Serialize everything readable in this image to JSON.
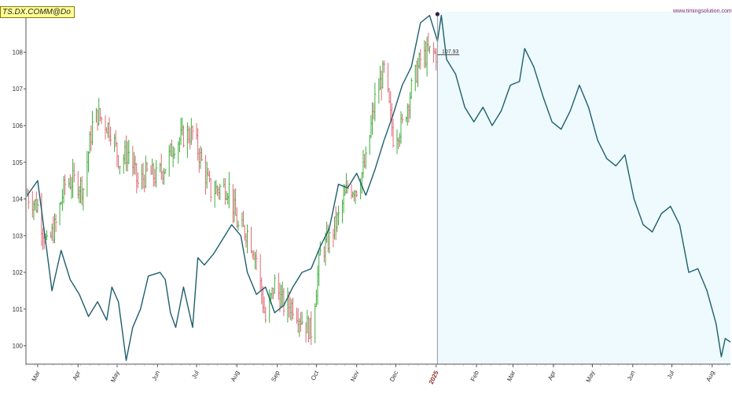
{
  "header": {
    "ticker": "TS.DX.COMM@Do",
    "watermark": "www.timingsolution.com",
    "last_price_label": "107.93"
  },
  "colors": {
    "forecast_line": "#1e5e6e",
    "bar_up": "#3fae3f",
    "bar_down": "#e06a75",
    "bar_neutral": "#888888",
    "forecast_zone": "#eefafd",
    "axis": "#555555",
    "year_label": "#8b2a2a",
    "marker": "#3a1b4a"
  },
  "chart_data": {
    "type": "line",
    "title": "",
    "xlabel": "",
    "ylabel": "",
    "ylim": [
      99.5,
      109.1
    ],
    "y_ticks": [
      "100",
      "101",
      "102",
      "103",
      "104",
      "105",
      "106",
      "107",
      "108",
      "109"
    ],
    "x_ticks": [
      {
        "label": "Mar",
        "date": "2024-03-01"
      },
      {
        "label": "Apr",
        "date": "2024-04-01"
      },
      {
        "label": "May",
        "date": "2024-05-01"
      },
      {
        "label": "Jun",
        "date": "2024-06-01"
      },
      {
        "label": "Jul",
        "date": "2024-07-01"
      },
      {
        "label": "Aug",
        "date": "2024-08-01"
      },
      {
        "label": "Sep",
        "date": "2024-09-01"
      },
      {
        "label": "Oct",
        "date": "2024-10-01"
      },
      {
        "label": "Nov",
        "date": "2024-11-01"
      },
      {
        "label": "Dec",
        "date": "2024-12-01"
      },
      {
        "label": "2025",
        "date": "2025-01-01",
        "is_year": true
      },
      {
        "label": "Feb",
        "date": "2025-02-01"
      },
      {
        "label": "Mar",
        "date": "2025-03-01"
      },
      {
        "label": "Apr",
        "date": "2025-04-01"
      },
      {
        "label": "May",
        "date": "2025-05-01"
      },
      {
        "label": "Jun",
        "date": "2025-06-01"
      },
      {
        "label": "Jul",
        "date": "2025-07-01"
      },
      {
        "label": "Aug",
        "date": "2025-08-01"
      }
    ],
    "x_range": [
      "2024-02-21",
      "2025-08-15"
    ],
    "forecast_start": "2025-01-02",
    "last_bar": {
      "date": "2025-01-02",
      "price": 107.93
    },
    "series": [
      {
        "kind": "price_bars",
        "points": [
          [
            "2024-02-22",
            104.1
          ],
          [
            "2024-03-01",
            103.8
          ],
          [
            "2024-03-08",
            102.7
          ],
          [
            "2024-03-15",
            103.3
          ],
          [
            "2024-03-22",
            104.4
          ],
          [
            "2024-03-29",
            104.5
          ],
          [
            "2024-04-05",
            104.3
          ],
          [
            "2024-04-12",
            106.0
          ],
          [
            "2024-04-16",
            106.3
          ],
          [
            "2024-04-26",
            105.9
          ],
          [
            "2024-05-03",
            105.0
          ],
          [
            "2024-05-10",
            105.3
          ],
          [
            "2024-05-17",
            104.4
          ],
          [
            "2024-05-24",
            104.7
          ],
          [
            "2024-05-31",
            104.6
          ],
          [
            "2024-06-07",
            104.9
          ],
          [
            "2024-06-14",
            105.5
          ],
          [
            "2024-06-21",
            105.7
          ],
          [
            "2024-06-28",
            105.8
          ],
          [
            "2024-07-05",
            105.0
          ],
          [
            "2024-07-12",
            104.2
          ],
          [
            "2024-07-19",
            104.3
          ],
          [
            "2024-07-26",
            104.3
          ],
          [
            "2024-08-02",
            103.2
          ],
          [
            "2024-08-09",
            103.1
          ],
          [
            "2024-08-16",
            102.4
          ],
          [
            "2024-08-23",
            100.7
          ],
          [
            "2024-08-30",
            101.7
          ],
          [
            "2024-09-06",
            101.1
          ],
          [
            "2024-09-13",
            101.1
          ],
          [
            "2024-09-20",
            100.7
          ],
          [
            "2024-09-27",
            100.4
          ],
          [
            "2024-10-04",
            102.5
          ],
          [
            "2024-10-11",
            102.9
          ],
          [
            "2024-10-18",
            103.5
          ],
          [
            "2024-10-25",
            104.3
          ],
          [
            "2024-11-01",
            104.3
          ],
          [
            "2024-11-08",
            105.0
          ],
          [
            "2024-11-15",
            106.7
          ],
          [
            "2024-11-22",
            107.5
          ],
          [
            "2024-11-29",
            105.7
          ],
          [
            "2024-12-06",
            106.0
          ],
          [
            "2024-12-13",
            107.0
          ],
          [
            "2024-12-20",
            107.8
          ],
          [
            "2024-12-27",
            108.0
          ],
          [
            "2025-01-02",
            107.93
          ]
        ]
      },
      {
        "kind": "projection_line",
        "points": [
          [
            "2024-02-22",
            104.1
          ],
          [
            "2024-03-01",
            104.5
          ],
          [
            "2024-03-08",
            102.6
          ],
          [
            "2024-03-12",
            101.5
          ],
          [
            "2024-03-19",
            102.6
          ],
          [
            "2024-03-26",
            101.8
          ],
          [
            "2024-04-02",
            101.4
          ],
          [
            "2024-04-09",
            100.8
          ],
          [
            "2024-04-16",
            101.2
          ],
          [
            "2024-04-23",
            100.7
          ],
          [
            "2024-04-27",
            101.6
          ],
          [
            "2024-05-02",
            101.2
          ],
          [
            "2024-05-05",
            100.4
          ],
          [
            "2024-05-08",
            99.6
          ],
          [
            "2024-05-13",
            100.5
          ],
          [
            "2024-05-19",
            101.0
          ],
          [
            "2024-05-25",
            101.9
          ],
          [
            "2024-06-03",
            102.0
          ],
          [
            "2024-06-07",
            101.8
          ],
          [
            "2024-06-11",
            100.9
          ],
          [
            "2024-06-15",
            100.5
          ],
          [
            "2024-06-21",
            101.6
          ],
          [
            "2024-06-28",
            100.5
          ],
          [
            "2024-07-02",
            102.4
          ],
          [
            "2024-07-07",
            102.2
          ],
          [
            "2024-07-14",
            102.5
          ],
          [
            "2024-07-21",
            102.9
          ],
          [
            "2024-07-28",
            103.3
          ],
          [
            "2024-08-04",
            103.0
          ],
          [
            "2024-08-09",
            102.0
          ],
          [
            "2024-08-16",
            101.4
          ],
          [
            "2024-08-23",
            101.6
          ],
          [
            "2024-08-30",
            100.9
          ],
          [
            "2024-09-06",
            101.1
          ],
          [
            "2024-09-13",
            101.6
          ],
          [
            "2024-09-20",
            102.0
          ],
          [
            "2024-09-27",
            102.1
          ],
          [
            "2024-10-04",
            102.7
          ],
          [
            "2024-10-11",
            103.2
          ],
          [
            "2024-10-18",
            104.4
          ],
          [
            "2024-10-25",
            104.3
          ],
          [
            "2024-11-01",
            104.7
          ],
          [
            "2024-11-08",
            104.1
          ],
          [
            "2024-11-15",
            104.8
          ],
          [
            "2024-11-22",
            105.6
          ],
          [
            "2024-11-29",
            106.3
          ],
          [
            "2024-12-06",
            107.1
          ],
          [
            "2024-12-13",
            107.6
          ],
          [
            "2024-12-20",
            108.8
          ],
          [
            "2024-12-27",
            109.0
          ],
          [
            "2025-01-02",
            108.3
          ],
          [
            "2025-01-05",
            109.0
          ],
          [
            "2025-01-09",
            107.8
          ],
          [
            "2025-01-16",
            107.4
          ],
          [
            "2025-01-23",
            106.5
          ],
          [
            "2025-01-30",
            106.1
          ],
          [
            "2025-02-06",
            106.5
          ],
          [
            "2025-02-13",
            106.0
          ],
          [
            "2025-02-20",
            106.4
          ],
          [
            "2025-02-27",
            107.1
          ],
          [
            "2025-03-06",
            107.2
          ],
          [
            "2025-03-10",
            108.1
          ],
          [
            "2025-03-17",
            107.6
          ],
          [
            "2025-03-24",
            106.8
          ],
          [
            "2025-03-31",
            106.1
          ],
          [
            "2025-04-07",
            105.9
          ],
          [
            "2025-04-14",
            106.4
          ],
          [
            "2025-04-21",
            107.1
          ],
          [
            "2025-04-28",
            106.5
          ],
          [
            "2025-05-05",
            105.6
          ],
          [
            "2025-05-12",
            105.1
          ],
          [
            "2025-05-19",
            104.9
          ],
          [
            "2025-05-26",
            105.2
          ],
          [
            "2025-06-02",
            104.0
          ],
          [
            "2025-06-09",
            103.3
          ],
          [
            "2025-06-16",
            103.1
          ],
          [
            "2025-06-23",
            103.6
          ],
          [
            "2025-06-30",
            103.8
          ],
          [
            "2025-07-07",
            103.3
          ],
          [
            "2025-07-14",
            102.0
          ],
          [
            "2025-07-21",
            102.1
          ],
          [
            "2025-07-28",
            101.5
          ],
          [
            "2025-08-04",
            100.6
          ],
          [
            "2025-08-08",
            99.7
          ],
          [
            "2025-08-11",
            100.2
          ],
          [
            "2025-08-15",
            100.1
          ]
        ]
      }
    ],
    "grid": false
  }
}
